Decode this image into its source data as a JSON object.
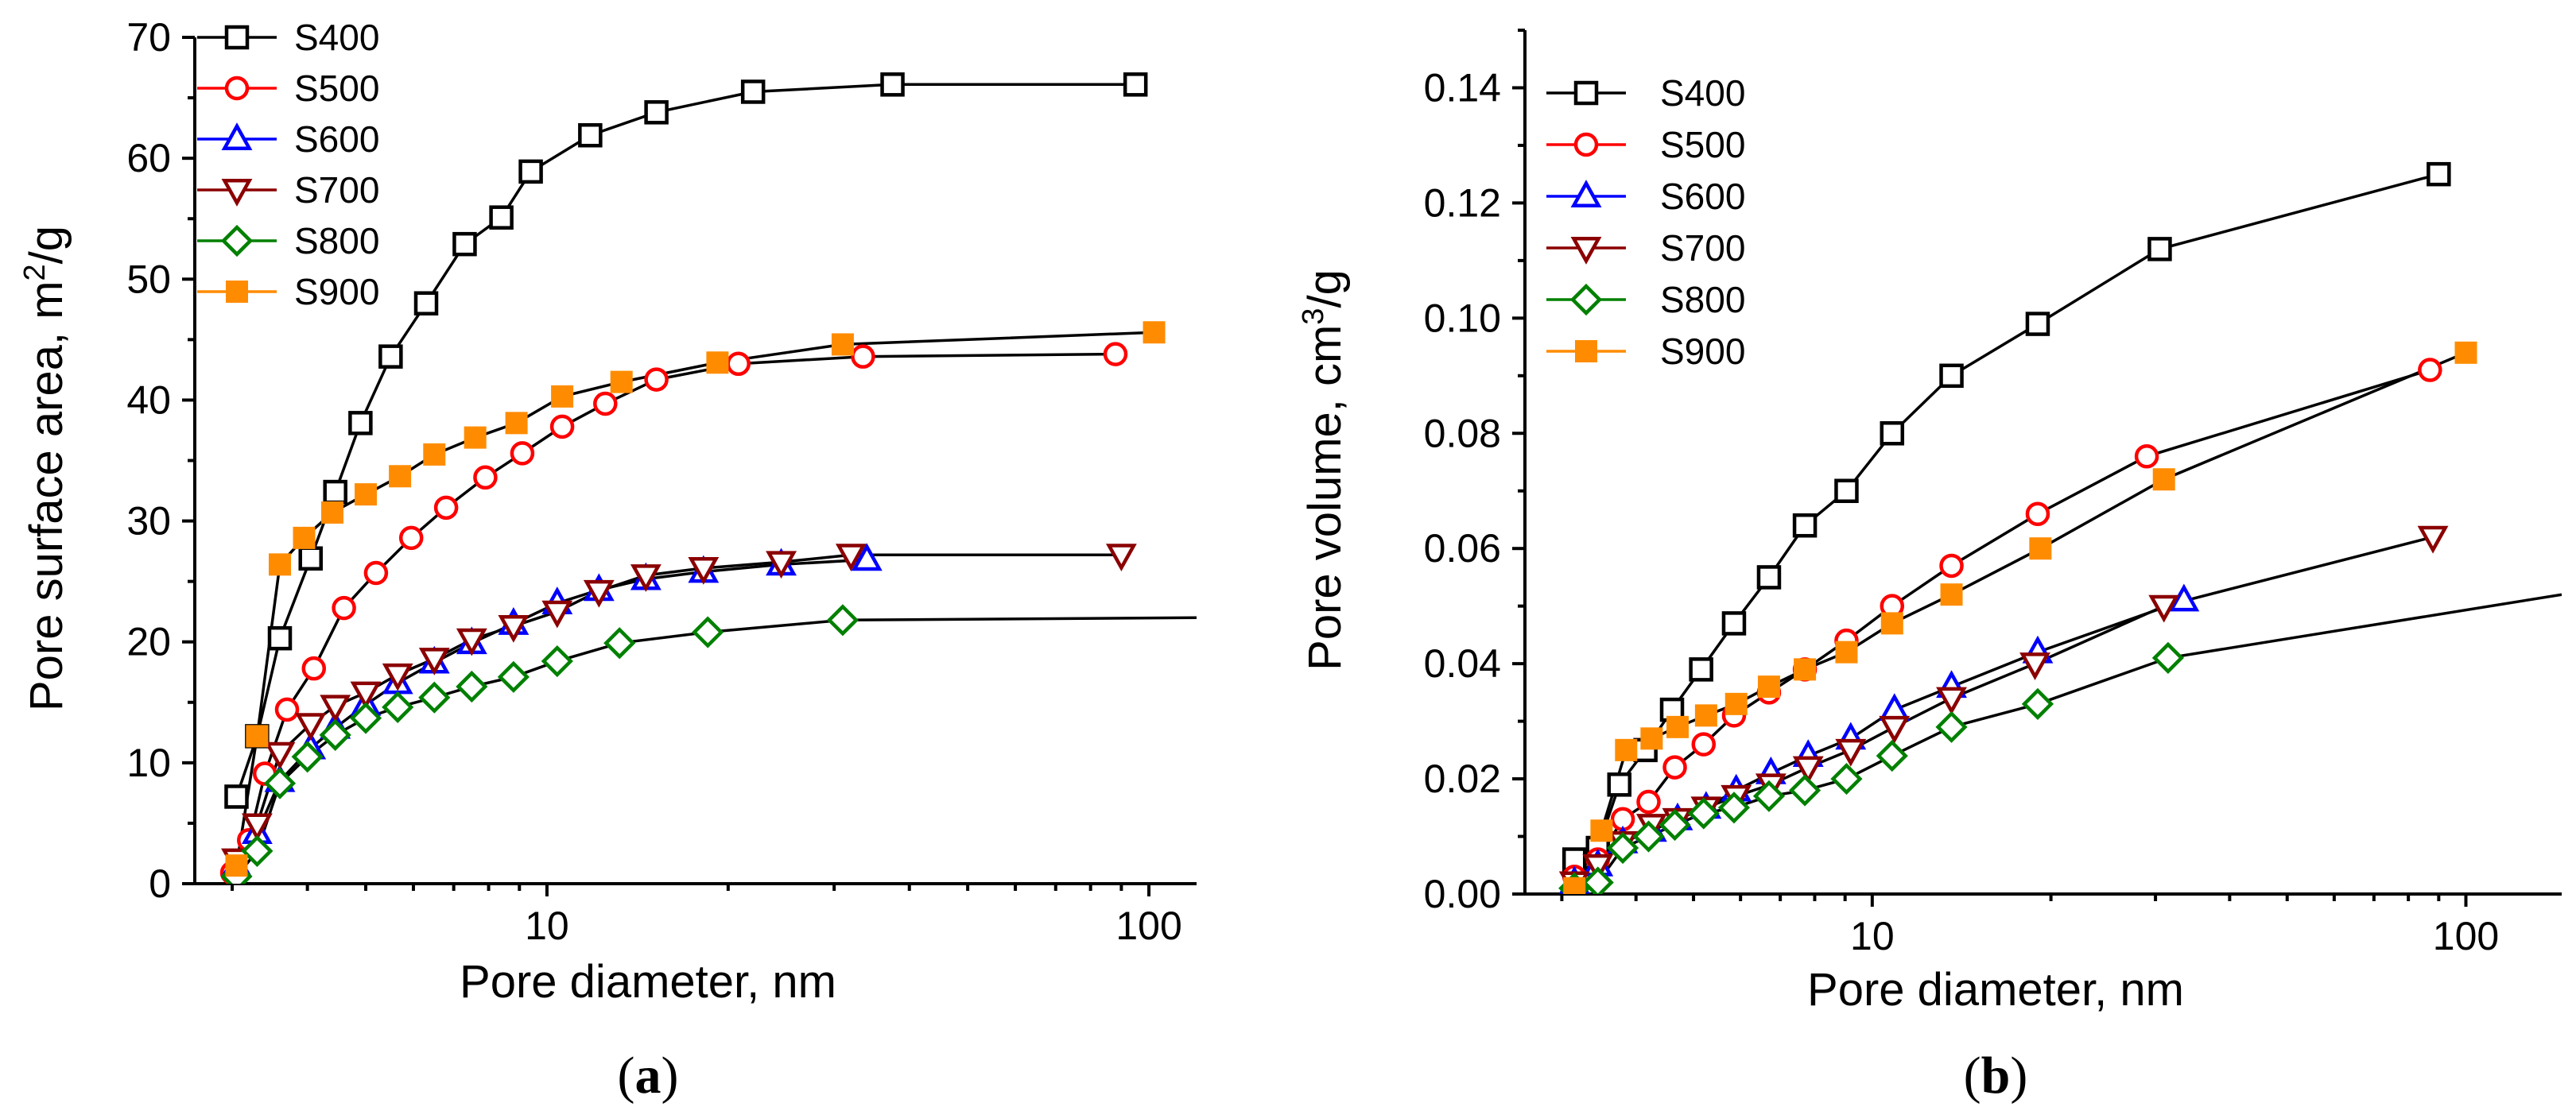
{
  "chart_data": [
    {
      "type": "line",
      "panel_label": "a",
      "xlabel": "Pore diameter, nm",
      "ylabel": "Pore surface area, m²/g",
      "ylabel_parts": {
        "main": "Pore surface area, m",
        "sup": "2",
        "tail": "/g"
      },
      "x_scale": "log",
      "xlim": [
        2.6,
        120
      ],
      "ylim": [
        0,
        70
      ],
      "x_ticks": [
        {
          "value": 10,
          "label": "10"
        },
        {
          "value": 100,
          "label": "100"
        }
      ],
      "y_ticks": [
        {
          "value": 0,
          "label": "0"
        },
        {
          "value": 10,
          "label": "10"
        },
        {
          "value": 20,
          "label": "20"
        },
        {
          "value": 30,
          "label": "30"
        },
        {
          "value": 40,
          "label": "40"
        },
        {
          "value": 50,
          "label": "50"
        },
        {
          "value": 60,
          "label": "60"
        },
        {
          "value": 70,
          "label": "70"
        }
      ],
      "legend_position": "top-left",
      "series": [
        {
          "name": "S400",
          "color": "#000000",
          "marker": "square-open",
          "x": [
            3.05,
            3.3,
            3.6,
            4.05,
            4.45,
            4.9,
            5.5,
            6.3,
            7.3,
            8.4,
            9.4,
            11.8,
            15.2,
            22.0,
            37.5,
            95.0
          ],
          "y": [
            7.2,
            12.2,
            20.3,
            26.9,
            32.4,
            38.1,
            43.6,
            48.0,
            52.9,
            55.1,
            58.9,
            61.9,
            63.8,
            65.5,
            66.1,
            66.1
          ]
        },
        {
          "name": "S500",
          "color": "#ff0000",
          "marker": "circle-open",
          "x": [
            3.0,
            3.2,
            3.4,
            3.7,
            4.1,
            4.6,
            5.2,
            5.95,
            6.8,
            7.9,
            9.1,
            10.6,
            12.5,
            15.2,
            20.8,
            33.5,
            88.0
          ],
          "y": [
            0.9,
            3.6,
            9.1,
            14.4,
            17.8,
            22.8,
            25.7,
            28.6,
            31.1,
            33.6,
            35.6,
            37.8,
            39.7,
            41.7,
            43.0,
            43.6,
            43.8
          ]
        },
        {
          "name": "S600",
          "color": "#0000ff",
          "marker": "triangle-up-open",
          "x": [
            3.05,
            3.3,
            3.6,
            4.05,
            4.45,
            5.0,
            5.65,
            6.5,
            7.5,
            8.8,
            10.4,
            12.2,
            14.6,
            18.2,
            24.5,
            34.0
          ],
          "y": [
            1.5,
            4.2,
            8.5,
            11.2,
            12.9,
            14.8,
            16.6,
            18.3,
            19.9,
            21.5,
            23.2,
            24.3,
            25.2,
            25.8,
            26.4,
            26.8
          ]
        },
        {
          "name": "S700",
          "color": "#8b0000",
          "marker": "triangle-down-open",
          "x": [
            3.05,
            3.3,
            3.6,
            4.05,
            4.45,
            5.0,
            5.65,
            6.5,
            7.5,
            8.8,
            10.4,
            12.2,
            14.6,
            18.2,
            24.5,
            32.0,
            90.0
          ],
          "y": [
            2.0,
            4.9,
            10.8,
            13.2,
            14.7,
            15.8,
            17.3,
            18.6,
            20.2,
            21.3,
            22.5,
            24.2,
            25.5,
            26.1,
            26.6,
            27.2,
            27.2
          ]
        },
        {
          "name": "S800",
          "color": "#008000",
          "marker": "diamond-open",
          "x": [
            3.05,
            3.3,
            3.6,
            4.0,
            4.45,
            5.0,
            5.65,
            6.5,
            7.5,
            8.8,
            10.4,
            13.2,
            18.5,
            31.0,
            120.0
          ],
          "y": [
            0.6,
            2.7,
            8.3,
            10.5,
            12.3,
            13.7,
            14.6,
            15.4,
            16.3,
            17.1,
            18.4,
            19.9,
            20.8,
            21.8,
            22.0
          ]
        },
        {
          "name": "S900",
          "color": "#ff8c00",
          "marker": "square-filled",
          "x": [
            3.05,
            3.3,
            3.6,
            3.95,
            4.4,
            5.0,
            5.7,
            6.5,
            7.6,
            8.9,
            10.6,
            13.3,
            19.2,
            31.0,
            102.0
          ],
          "y": [
            1.5,
            12.2,
            26.4,
            28.6,
            30.7,
            32.2,
            33.7,
            35.5,
            36.9,
            38.1,
            40.3,
            41.5,
            43.1,
            44.6,
            45.6
          ]
        }
      ]
    },
    {
      "type": "line",
      "panel_label": "b",
      "xlabel": "Pore diameter, nm",
      "ylabel": "Pore volume, cm³/g",
      "ylabel_parts": {
        "main": "Pore volume, cm",
        "sup": "3",
        "tail": "/g"
      },
      "x_scale": "log",
      "xlim": [
        2.6,
        145
      ],
      "ylim": [
        0,
        0.15
      ],
      "x_ticks": [
        {
          "value": 10,
          "label": "10"
        },
        {
          "value": 100,
          "label": "100"
        }
      ],
      "y_ticks": [
        {
          "value": 0,
          "label": "0.00"
        },
        {
          "value": 0.02,
          "label": "0.02"
        },
        {
          "value": 0.04,
          "label": "0.04"
        },
        {
          "value": 0.06,
          "label": "0.06"
        },
        {
          "value": 0.08,
          "label": "0.08"
        },
        {
          "value": 0.1,
          "label": "0.10"
        },
        {
          "value": 0.12,
          "label": "0.12"
        },
        {
          "value": 0.14,
          "label": "0.14"
        }
      ],
      "legend_position": "top-left",
      "series": [
        {
          "name": "S400",
          "color": "#000000",
          "marker": "square-open",
          "x": [
            3.15,
            3.45,
            3.75,
            4.15,
            4.6,
            5.15,
            5.85,
            6.7,
            7.7,
            9.05,
            10.8,
            13.6,
            19.0,
            30.5,
            90.0
          ],
          "y": [
            0.006,
            0.008,
            0.019,
            0.025,
            0.032,
            0.039,
            0.047,
            0.055,
            0.064,
            0.07,
            0.08,
            0.09,
            0.099,
            0.112,
            0.125
          ]
        },
        {
          "name": "S500",
          "color": "#ff0000",
          "marker": "circle-open",
          "x": [
            3.15,
            3.45,
            3.8,
            4.2,
            4.65,
            5.2,
            5.85,
            6.7,
            7.7,
            9.05,
            10.8,
            13.6,
            19.0,
            29.0,
            87.0
          ],
          "y": [
            0.003,
            0.006,
            0.013,
            0.016,
            0.022,
            0.026,
            0.031,
            0.035,
            0.039,
            0.044,
            0.05,
            0.057,
            0.066,
            0.076,
            0.091
          ]
        },
        {
          "name": "S600",
          "color": "#0000ff",
          "marker": "triangle-up-open",
          "x": [
            3.15,
            3.45,
            3.8,
            4.25,
            4.7,
            5.25,
            5.9,
            6.75,
            7.8,
            9.2,
            10.9,
            13.6,
            19.0,
            33.5
          ],
          "y": [
            0.002,
            0.005,
            0.009,
            0.011,
            0.013,
            0.015,
            0.018,
            0.021,
            0.024,
            0.027,
            0.032,
            0.036,
            0.042,
            0.051
          ]
        },
        {
          "name": "S700",
          "color": "#8b0000",
          "marker": "triangle-down-open",
          "x": [
            3.15,
            3.45,
            3.8,
            4.25,
            4.7,
            5.25,
            5.9,
            6.75,
            7.8,
            9.2,
            10.9,
            13.6,
            18.8,
            31.0,
            88.0
          ],
          "y": [
            0.002,
            0.005,
            0.009,
            0.012,
            0.013,
            0.015,
            0.017,
            0.019,
            0.022,
            0.025,
            0.029,
            0.034,
            0.04,
            0.05,
            0.062
          ]
        },
        {
          "name": "S800",
          "color": "#008000",
          "marker": "diamond-open",
          "x": [
            3.15,
            3.45,
            3.8,
            4.2,
            4.65,
            5.2,
            5.85,
            6.7,
            7.7,
            9.05,
            10.8,
            13.6,
            19.0,
            31.5,
            145.0
          ],
          "y": [
            0.001,
            0.002,
            0.008,
            0.01,
            0.012,
            0.014,
            0.015,
            0.017,
            0.018,
            0.02,
            0.024,
            0.029,
            0.033,
            0.041,
            0.052
          ]
        },
        {
          "name": "S900",
          "color": "#ff8c00",
          "marker": "square-filled",
          "x": [
            3.15,
            3.5,
            3.85,
            4.25,
            4.7,
            5.25,
            5.9,
            6.7,
            7.7,
            9.05,
            10.8,
            13.6,
            19.2,
            31.0,
            100.0
          ],
          "y": [
            0.001,
            0.011,
            0.025,
            0.027,
            0.029,
            0.031,
            0.033,
            0.036,
            0.039,
            0.042,
            0.047,
            0.052,
            0.06,
            0.072,
            0.094
          ]
        }
      ]
    }
  ]
}
